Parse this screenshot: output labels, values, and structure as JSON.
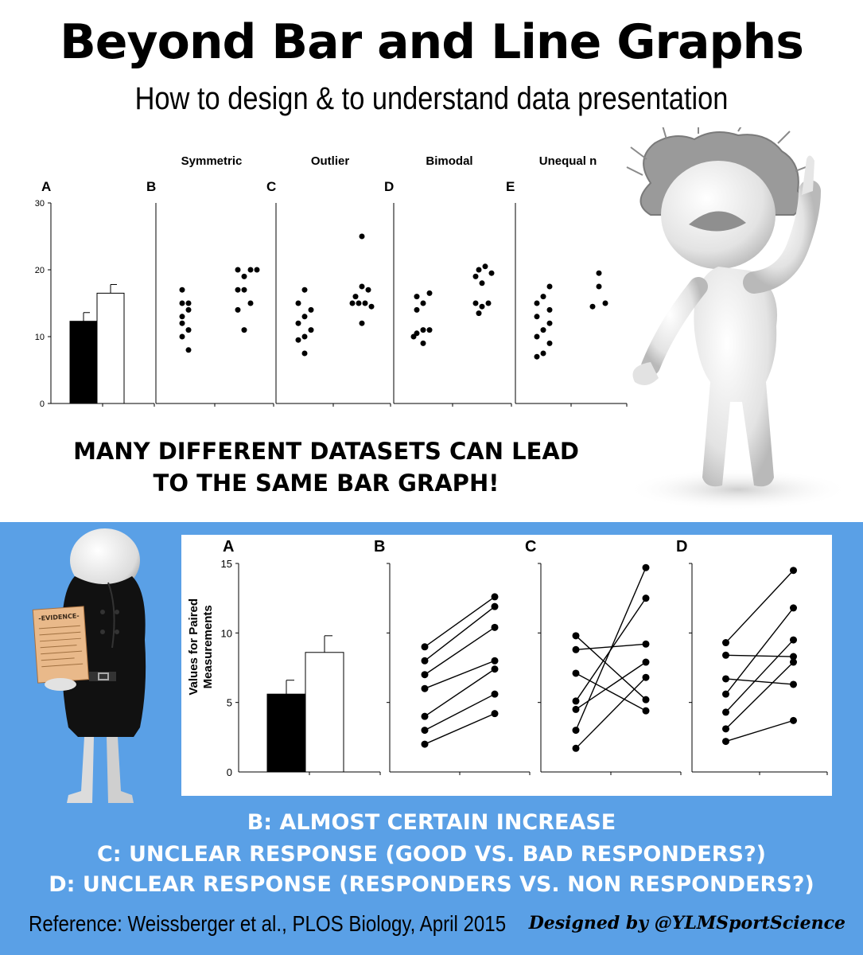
{
  "header": {
    "title": "Beyond Bar and Line Graphs",
    "subtitle": "How to design & to understand data presentation"
  },
  "top_section": {
    "tagline_line1": "Many different datasets can lead",
    "tagline_line2": "to the same bar graph!"
  },
  "bottom_section": {
    "conclusions": [
      "B: Almost certain increase",
      "C: Unclear response (good vs. bad responders?)",
      "D: Unclear response (responders vs. non responders?)"
    ]
  },
  "footer": {
    "reference": "Reference: Weissberger et al., PLOS Biology, April 2015",
    "credit": "Designed by @YLMSportScience"
  },
  "illustration": {
    "evidence_label": "-EVIDENCE-"
  },
  "colors": {
    "blue_background": "#5aa0e6",
    "bar_dark": "#000000",
    "bar_light": "#ffffff"
  },
  "chart_data": [
    {
      "type": "bar",
      "panel": "A",
      "categories": [
        "",
        ""
      ],
      "values": [
        12.3,
        16.5
      ],
      "errors": [
        1.3,
        1.3
      ],
      "ylim": [
        0,
        30
      ],
      "yticks": [
        0,
        10,
        20,
        30
      ],
      "title": ""
    },
    {
      "type": "scatter",
      "panel": "B",
      "title": "Symmetric",
      "ylim": [
        0,
        30
      ],
      "groups": [
        [
          [
            -2,
            17
          ],
          [
            2,
            15
          ],
          [
            -2,
            15
          ],
          [
            2,
            14
          ],
          [
            -2,
            13
          ],
          [
            -2,
            12
          ],
          [
            2,
            11
          ],
          [
            -2,
            10
          ],
          [
            2,
            8
          ]
        ],
        [
          [
            -4,
            20
          ],
          [
            4,
            20
          ],
          [
            8,
            20
          ],
          [
            0,
            19
          ],
          [
            0,
            17
          ],
          [
            -4,
            17
          ],
          [
            4,
            15
          ],
          [
            -4,
            14
          ],
          [
            0,
            11
          ]
        ]
      ]
    },
    {
      "type": "scatter",
      "panel": "C",
      "title": "Outlier",
      "ylim": [
        0,
        30
      ],
      "groups": [
        [
          [
            0,
            17
          ],
          [
            -4,
            15
          ],
          [
            4,
            14
          ],
          [
            0,
            13
          ],
          [
            -4,
            12
          ],
          [
            4,
            11
          ],
          [
            0,
            10
          ],
          [
            -4,
            9.5
          ],
          [
            0,
            7.5
          ]
        ],
        [
          [
            0,
            25
          ],
          [
            0,
            17.5
          ],
          [
            4,
            17
          ],
          [
            -4,
            16
          ],
          [
            -2,
            15
          ],
          [
            2,
            15
          ],
          [
            6,
            14.5
          ],
          [
            -6,
            15
          ],
          [
            0,
            12
          ]
        ]
      ]
    },
    {
      "type": "scatter",
      "panel": "D",
      "title": "Bimodal",
      "ylim": [
        0,
        30
      ],
      "groups": [
        [
          [
            4,
            16.5
          ],
          [
            -4,
            16
          ],
          [
            0,
            15
          ],
          [
            -4,
            14
          ],
          [
            -4,
            10.5
          ],
          [
            0,
            11
          ],
          [
            4,
            11
          ],
          [
            -6,
            10
          ],
          [
            0,
            9
          ]
        ],
        [
          [
            2,
            20.5
          ],
          [
            -2,
            20
          ],
          [
            6,
            19.5
          ],
          [
            -4,
            19
          ],
          [
            0,
            18
          ],
          [
            -4,
            15
          ],
          [
            4,
            15
          ],
          [
            0,
            14.5
          ],
          [
            -2,
            13.5
          ]
        ]
      ]
    },
    {
      "type": "scatter",
      "panel": "E",
      "title": "Unequal n",
      "ylim": [
        0,
        30
      ],
      "groups": [
        [
          [
            4,
            17.5
          ],
          [
            0,
            16
          ],
          [
            -4,
            15
          ],
          [
            4,
            14
          ],
          [
            -4,
            13
          ],
          [
            4,
            12
          ],
          [
            0,
            11
          ],
          [
            -4,
            10
          ],
          [
            4,
            9
          ],
          [
            0,
            7.5
          ],
          [
            -4,
            7
          ]
        ],
        [
          [
            0,
            19.5
          ],
          [
            0,
            17.5
          ],
          [
            -4,
            14.5
          ],
          [
            4,
            15
          ]
        ]
      ]
    },
    {
      "type": "bar",
      "panel": "A",
      "categories": [
        "",
        ""
      ],
      "values": [
        5.6,
        8.6
      ],
      "errors": [
        1.0,
        1.2
      ],
      "ylim": [
        0,
        15
      ],
      "yticks": [
        0,
        5,
        10,
        15
      ],
      "ylabel": "Values for Paired Measurements",
      "title": ""
    },
    {
      "type": "line",
      "panel": "B",
      "title": "",
      "ylim": [
        0,
        15
      ],
      "pairs": [
        [
          9,
          12.6
        ],
        [
          8,
          11.9
        ],
        [
          7,
          10.4
        ],
        [
          6,
          8.0
        ],
        [
          4,
          7.4
        ],
        [
          3,
          5.6
        ],
        [
          2,
          4.2
        ]
      ]
    },
    {
      "type": "line",
      "panel": "C",
      "title": "",
      "ylim": [
        0,
        15
      ],
      "pairs": [
        [
          9.8,
          5.2
        ],
        [
          8.8,
          9.2
        ],
        [
          7.1,
          4.4
        ],
        [
          5.1,
          12.5
        ],
        [
          4.5,
          7.9
        ],
        [
          3.0,
          14.7
        ],
        [
          1.7,
          6.8
        ]
      ]
    },
    {
      "type": "line",
      "panel": "D",
      "title": "",
      "ylim": [
        0,
        15
      ],
      "pairs": [
        [
          9.3,
          14.5
        ],
        [
          8.4,
          8.3
        ],
        [
          6.7,
          6.3
        ],
        [
          5.6,
          11.8
        ],
        [
          4.3,
          9.5
        ],
        [
          3.1,
          7.9
        ],
        [
          2.2,
          3.7
        ]
      ]
    }
  ]
}
